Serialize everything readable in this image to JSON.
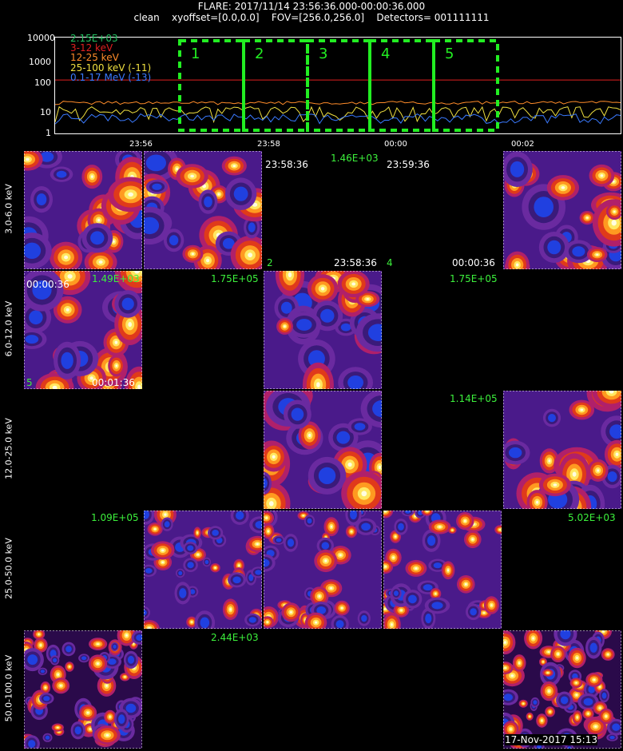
{
  "header": {
    "line1": "FLARE: 2017/11/14 23:56:36.000-00:00:36.000",
    "line2": "clean    xyoffset=[0.0,0.0]    FOV=[256.0,256.0]    Detectors= 001111111"
  },
  "lightcurve": {
    "y_ticks": [
      "10000",
      "1000",
      "100",
      "10",
      "1"
    ],
    "x_ticks": [
      "23:56",
      "23:58",
      "00:00",
      "00:02"
    ],
    "legend": [
      {
        "label": "2.15E+03",
        "color": "#22c060"
      },
      {
        "label": "3-12 keV",
        "color": "#e02020"
      },
      {
        "label": "12-25 keV",
        "color": "#ff8c2a"
      },
      {
        "label": "25-100 keV (-11)",
        "color": "#f0e040"
      },
      {
        "label": "0.1-17 MeV (-13)",
        "color": "#3a7aff"
      }
    ],
    "windows": [
      "1",
      "2",
      "3",
      "4",
      "5"
    ]
  },
  "rows": [
    {
      "label": "3.0-6.0 keV"
    },
    {
      "label": "6.0-12.0 keV"
    },
    {
      "label": "12.0-25.0 keV"
    },
    {
      "label": "25.0-50.0 keV"
    },
    {
      "label": "50.0-100.0 keV"
    }
  ],
  "annotations": {
    "r1_max1": "1.46E+03",
    "r1_t1": "23:58:36",
    "r1_t2": "23:59:36",
    "r1_t3": "23:58:36",
    "r1_t4": "00:00:36",
    "r1_n2": "2",
    "r1_n4": "4",
    "r2_max0": "1.49E+03",
    "r2_t0": "00:00:36",
    "r2_t0b": "00:01:36",
    "r2_n5": "5",
    "r2_max1": "1.75E+05",
    "r2_max3": "1.75E+05",
    "r3_max3": "1.14E+05",
    "r4_max0": "1.09E+05",
    "r4_max4": "5.02E+03",
    "r5_max1": "2.44E+03",
    "footer_date": "17-Nov-2017 15:13"
  },
  "colors": {
    "palette": [
      "#1a0a3a",
      "#3a1a7a",
      "#2040e0",
      "#6a2aa0",
      "#b0206a",
      "#e03a1a",
      "#ff9a20",
      "#ffe860",
      "#fffde0"
    ]
  }
}
